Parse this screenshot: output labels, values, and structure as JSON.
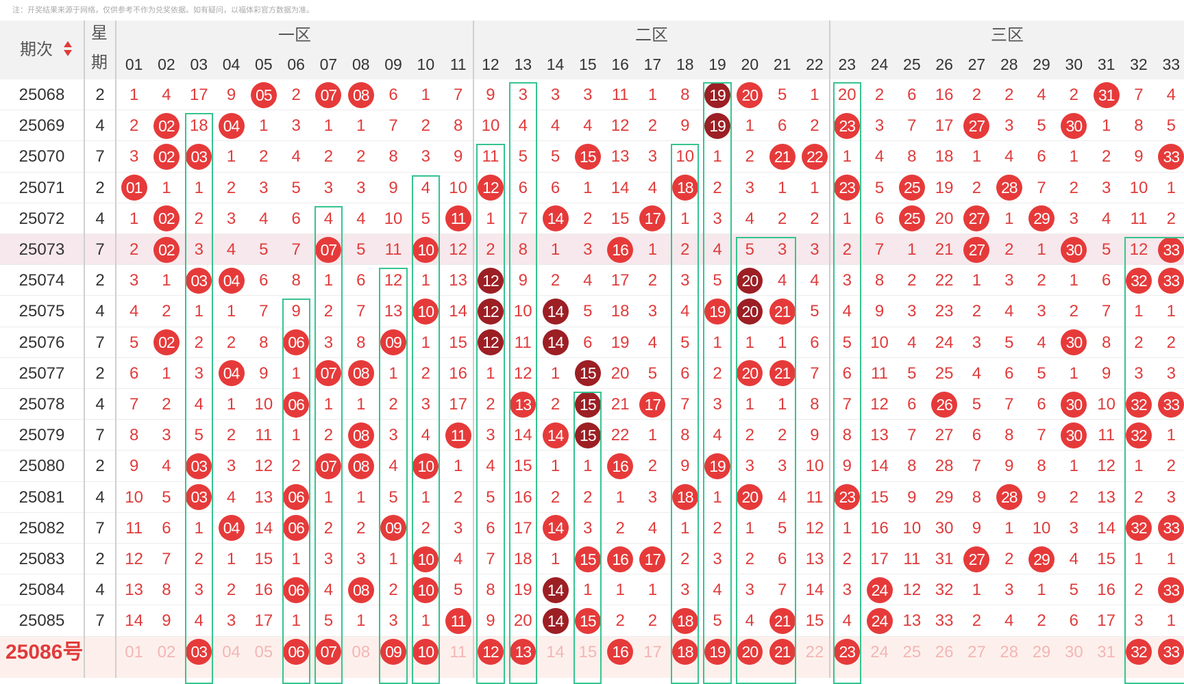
{
  "note": "注：开奖结果来源于网络，仅供参考不作为兑奖依据。如有疑问，以福体彩官方数据为准。",
  "header": {
    "issue_label": "期次",
    "week_label_1": "星",
    "week_label_2": "期",
    "zones": [
      "一区",
      "二区",
      "三区"
    ]
  },
  "columns": [
    "01",
    "02",
    "03",
    "04",
    "05",
    "06",
    "07",
    "08",
    "09",
    "10",
    "11",
    "12",
    "13",
    "14",
    "15",
    "16",
    "17",
    "18",
    "19",
    "20",
    "21",
    "22",
    "23",
    "24",
    "25",
    "26",
    "27",
    "28",
    "29",
    "30",
    "31",
    "32",
    "33"
  ],
  "rows": [
    {
      "issue": "25068",
      "week": "2",
      "cells": [
        "1",
        "4",
        "17",
        "9",
        "05",
        "2",
        "07",
        "08",
        "6",
        "1",
        "7",
        "9",
        "3",
        "3",
        "3",
        "11",
        "1",
        "8",
        "19",
        "20",
        "5",
        "1",
        "20",
        "2",
        "6",
        "16",
        "2",
        "2",
        "4",
        "2",
        "31",
        "7",
        "4"
      ]
    },
    {
      "issue": "25069",
      "week": "4",
      "cells": [
        "2",
        "02",
        "18",
        "04",
        "1",
        "3",
        "1",
        "1",
        "7",
        "2",
        "8",
        "10",
        "4",
        "4",
        "4",
        "12",
        "2",
        "9",
        "19",
        "1",
        "6",
        "2",
        "23",
        "3",
        "7",
        "17",
        "27",
        "3",
        "5",
        "30",
        "1",
        "8",
        "5"
      ]
    },
    {
      "issue": "25070",
      "week": "7",
      "cells": [
        "3",
        "02",
        "03",
        "1",
        "2",
        "4",
        "2",
        "2",
        "8",
        "3",
        "9",
        "11",
        "5",
        "5",
        "15",
        "13",
        "3",
        "10",
        "1",
        "2",
        "21",
        "22",
        "1",
        "4",
        "8",
        "18",
        "1",
        "4",
        "6",
        "1",
        "2",
        "9",
        "33"
      ]
    },
    {
      "issue": "25071",
      "week": "2",
      "cells": [
        "01",
        "1",
        "1",
        "2",
        "3",
        "5",
        "3",
        "3",
        "9",
        "4",
        "10",
        "12",
        "6",
        "6",
        "1",
        "14",
        "4",
        "18",
        "2",
        "3",
        "1",
        "1",
        "23",
        "5",
        "25",
        "19",
        "2",
        "28",
        "7",
        "2",
        "3",
        "10",
        "1"
      ]
    },
    {
      "issue": "25072",
      "week": "4",
      "cells": [
        "1",
        "02",
        "2",
        "3",
        "4",
        "6",
        "4",
        "4",
        "10",
        "5",
        "11",
        "1",
        "7",
        "14",
        "2",
        "15",
        "17",
        "1",
        "3",
        "4",
        "2",
        "2",
        "1",
        "6",
        "25",
        "20",
        "27",
        "1",
        "29",
        "3",
        "4",
        "11",
        "2"
      ]
    },
    {
      "issue": "25073",
      "week": "7",
      "cells": [
        "2",
        "02",
        "3",
        "4",
        "5",
        "7",
        "07",
        "5",
        "11",
        "10",
        "12",
        "2",
        "8",
        "1",
        "3",
        "16",
        "1",
        "2",
        "4",
        "5",
        "3",
        "3",
        "2",
        "7",
        "1",
        "21",
        "27",
        "2",
        "1",
        "30",
        "5",
        "12",
        "33"
      ]
    },
    {
      "issue": "25074",
      "week": "2",
      "cells": [
        "3",
        "1",
        "03",
        "04",
        "6",
        "8",
        "1",
        "6",
        "12",
        "1",
        "13",
        "12",
        "9",
        "2",
        "4",
        "17",
        "2",
        "3",
        "5",
        "20",
        "4",
        "4",
        "3",
        "8",
        "2",
        "22",
        "1",
        "3",
        "2",
        "1",
        "6",
        "32",
        "33"
      ]
    },
    {
      "issue": "25075",
      "week": "4",
      "cells": [
        "4",
        "2",
        "1",
        "1",
        "7",
        "9",
        "2",
        "7",
        "13",
        "10",
        "14",
        "12",
        "10",
        "14",
        "5",
        "18",
        "3",
        "4",
        "19",
        "20",
        "21",
        "5",
        "4",
        "9",
        "3",
        "23",
        "2",
        "4",
        "3",
        "2",
        "7",
        "1",
        "1"
      ]
    },
    {
      "issue": "25076",
      "week": "7",
      "cells": [
        "5",
        "02",
        "2",
        "2",
        "8",
        "06",
        "3",
        "8",
        "09",
        "1",
        "15",
        "12",
        "11",
        "14",
        "6",
        "19",
        "4",
        "5",
        "1",
        "1",
        "1",
        "6",
        "5",
        "10",
        "4",
        "24",
        "3",
        "5",
        "4",
        "30",
        "8",
        "2",
        "2"
      ]
    },
    {
      "issue": "25077",
      "week": "2",
      "cells": [
        "6",
        "1",
        "3",
        "04",
        "9",
        "1",
        "07",
        "08",
        "1",
        "2",
        "16",
        "1",
        "12",
        "1",
        "15",
        "20",
        "5",
        "6",
        "2",
        "20",
        "21",
        "7",
        "6",
        "11",
        "5",
        "25",
        "4",
        "6",
        "5",
        "1",
        "9",
        "3",
        "3"
      ]
    },
    {
      "issue": "25078",
      "week": "4",
      "cells": [
        "7",
        "2",
        "4",
        "1",
        "10",
        "06",
        "1",
        "1",
        "2",
        "3",
        "17",
        "2",
        "13",
        "2",
        "15",
        "21",
        "17",
        "7",
        "3",
        "1",
        "1",
        "8",
        "7",
        "12",
        "6",
        "26",
        "5",
        "7",
        "6",
        "30",
        "10",
        "32",
        "33"
      ]
    },
    {
      "issue": "25079",
      "week": "7",
      "cells": [
        "8",
        "3",
        "5",
        "2",
        "11",
        "1",
        "2",
        "08",
        "3",
        "4",
        "11",
        "3",
        "14",
        "14",
        "15",
        "22",
        "1",
        "8",
        "4",
        "2",
        "2",
        "9",
        "8",
        "13",
        "7",
        "27",
        "6",
        "8",
        "7",
        "30",
        "11",
        "32",
        "1"
      ]
    },
    {
      "issue": "25080",
      "week": "2",
      "cells": [
        "9",
        "4",
        "03",
        "3",
        "12",
        "2",
        "07",
        "08",
        "4",
        "10",
        "1",
        "4",
        "15",
        "1",
        "1",
        "16",
        "2",
        "9",
        "19",
        "3",
        "3",
        "10",
        "9",
        "14",
        "8",
        "28",
        "7",
        "9",
        "8",
        "1",
        "12",
        "1",
        "2"
      ]
    },
    {
      "issue": "25081",
      "week": "4",
      "cells": [
        "10",
        "5",
        "03",
        "4",
        "13",
        "06",
        "1",
        "1",
        "5",
        "1",
        "2",
        "5",
        "16",
        "2",
        "2",
        "1",
        "3",
        "18",
        "1",
        "20",
        "4",
        "11",
        "23",
        "15",
        "9",
        "29",
        "8",
        "28",
        "9",
        "2",
        "13",
        "2",
        "3"
      ]
    },
    {
      "issue": "25082",
      "week": "7",
      "cells": [
        "11",
        "6",
        "1",
        "04",
        "14",
        "06",
        "2",
        "2",
        "09",
        "2",
        "3",
        "6",
        "17",
        "14",
        "3",
        "2",
        "4",
        "1",
        "2",
        "1",
        "5",
        "12",
        "1",
        "16",
        "10",
        "30",
        "9",
        "1",
        "10",
        "3",
        "14",
        "32",
        "33"
      ]
    },
    {
      "issue": "25083",
      "week": "2",
      "cells": [
        "12",
        "7",
        "2",
        "1",
        "15",
        "1",
        "3",
        "3",
        "1",
        "10",
        "4",
        "7",
        "18",
        "1",
        "15",
        "16",
        "17",
        "2",
        "3",
        "2",
        "6",
        "13",
        "2",
        "17",
        "11",
        "31",
        "27",
        "2",
        "29",
        "4",
        "15",
        "1",
        "1"
      ]
    },
    {
      "issue": "25084",
      "week": "4",
      "cells": [
        "13",
        "8",
        "3",
        "2",
        "16",
        "06",
        "4",
        "08",
        "2",
        "10",
        "5",
        "8",
        "19",
        "14",
        "1",
        "1",
        "1",
        "3",
        "4",
        "3",
        "7",
        "14",
        "3",
        "24",
        "12",
        "32",
        "1",
        "3",
        "1",
        "5",
        "16",
        "2",
        "33"
      ]
    },
    {
      "issue": "25085",
      "week": "7",
      "cells": [
        "14",
        "9",
        "4",
        "3",
        "17",
        "1",
        "5",
        "1",
        "3",
        "1",
        "11",
        "9",
        "20",
        "14",
        "15",
        "2",
        "2",
        "18",
        "5",
        "4",
        "21",
        "15",
        "4",
        "24",
        "13",
        "33",
        "2",
        "4",
        "2",
        "6",
        "17",
        "3",
        "1"
      ]
    }
  ],
  "last_row": {
    "label": "25086号",
    "cells": [
      "01",
      "02",
      "03",
      "04",
      "05",
      "06",
      "07",
      "08",
      "09",
      "10",
      "11",
      "12",
      "13",
      "14",
      "15",
      "16",
      "17",
      "18",
      "19",
      "20",
      "21",
      "22",
      "23",
      "24",
      "25",
      "26",
      "27",
      "28",
      "29",
      "30",
      "31",
      "32",
      "33"
    ]
  },
  "ball_color": "#e63a3a",
  "dark_ball_color": "#9c1f24",
  "box_color": "#35c48f"
}
